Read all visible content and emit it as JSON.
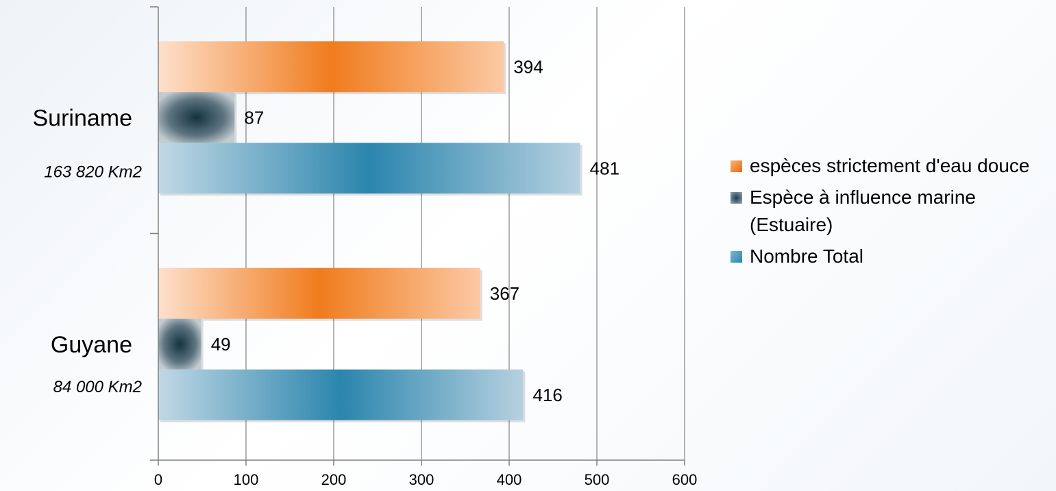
{
  "chart_data": {
    "type": "bar",
    "orientation": "horizontal",
    "categories": [
      {
        "name": "Suriname",
        "subtitle": "163 820 Km2"
      },
      {
        "name": "Guyane",
        "subtitle": "84 000 Km2"
      }
    ],
    "series": [
      {
        "name": "espèces strictement d'eau douce",
        "values": [
          394,
          367
        ],
        "color": "#f07c1e"
      },
      {
        "name": "Espèce à influence marine (Estuaire)",
        "values": [
          87,
          49
        ],
        "color": "#1d3b4f"
      },
      {
        "name": "Nombre Total",
        "values": [
          481,
          416
        ],
        "color": "#2b85ad"
      }
    ],
    "xlim": [
      0,
      600
    ],
    "xticks": [
      "0",
      "100",
      "200",
      "300",
      "400",
      "500",
      "600"
    ],
    "grid": true,
    "legend": "right"
  }
}
